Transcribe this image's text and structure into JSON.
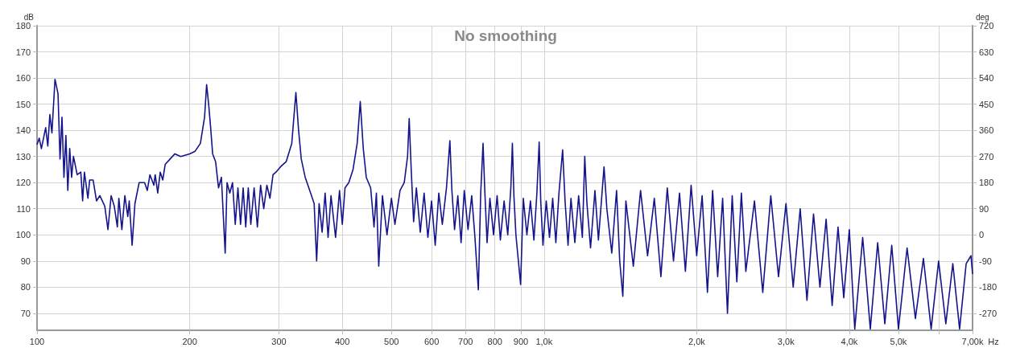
{
  "chart_data": {
    "type": "line",
    "title": "No smoothing",
    "xlabel": "Hz",
    "ylabel": "dB",
    "y2label": "deg",
    "log": "x",
    "grid": true,
    "xlim": [
      100,
      7000
    ],
    "xticks": [
      100,
      200,
      300,
      400,
      500,
      600,
      700,
      800,
      900,
      {
        "value": 1000,
        "label": "1,0k"
      },
      {
        "value": 2000,
        "label": "2,0k"
      },
      {
        "value": 3000,
        "label": "3,0k"
      },
      {
        "value": 4000,
        "label": "4,0k"
      },
      {
        "value": 5000,
        "label": "5,0k"
      },
      {
        "value": 6000,
        "label": null
      },
      {
        "value": 7000,
        "label": "7,00k"
      }
    ],
    "ylim": [
      63.5,
      180
    ],
    "yticks": [
      70,
      80,
      90,
      100,
      110,
      120,
      130,
      140,
      150,
      160,
      170,
      180
    ],
    "y2lim": [
      -328.5,
      720
    ],
    "y2ticks": [
      -270,
      -180,
      -90,
      0,
      90,
      180,
      270,
      360,
      450,
      540,
      630,
      720
    ],
    "series": [
      {
        "color": "#14148c",
        "x": [
          100,
          101,
          102,
          104,
          105,
          106,
          107,
          108.5,
          110,
          111,
          112,
          113,
          114,
          115,
          116,
          117,
          118,
          120,
          122,
          123,
          124,
          126,
          127,
          129,
          131,
          133,
          136,
          138,
          140,
          142,
          144,
          145,
          147,
          149,
          151,
          152,
          154,
          156,
          159,
          163,
          165,
          167,
          170,
          171,
          173,
          175,
          177,
          179,
          183,
          187,
          192,
          200,
          205,
          210,
          214,
          216,
          218,
          220,
          222,
          225,
          228,
          231,
          235,
          237,
          240,
          243,
          246,
          249,
          252,
          255,
          258,
          261,
          264,
          268,
          272,
          276,
          280,
          284,
          288,
          292,
          296,
          302,
          310,
          318,
          324,
          328,
          332,
          338,
          345,
          352,
          356,
          360,
          365,
          370,
          375,
          380,
          388,
          395,
          400,
          405,
          412,
          420,
          428,
          434,
          440,
          446,
          455,
          462,
          467,
          472,
          480,
          490,
          500,
          508,
          520,
          530,
          538,
          542,
          547,
          553,
          560,
          570,
          580,
          590,
          600,
          610,
          620,
          630,
          642,
          652,
          658,
          666,
          676,
          686,
          696,
          708,
          720,
          730,
          742,
          750,
          758,
          764,
          772,
          782,
          795,
          808,
          820,
          834,
          848,
          860,
          866,
          872,
          880,
          899,
          910,
          925,
          940,
          955,
          968,
          978,
          985,
          995,
          1010,
          1025,
          1040,
          1055,
          1070,
          1088,
          1100,
          1115,
          1130,
          1150,
          1170,
          1190,
          1203,
          1215,
          1235,
          1260,
          1280,
          1300,
          1313,
          1330,
          1360,
          1390,
          1410,
          1430,
          1450,
          1500,
          1550,
          1600,
          1650,
          1700,
          1750,
          1800,
          1850,
          1900,
          1950,
          2000,
          2050,
          2100,
          2150,
          2200,
          2250,
          2300,
          2350,
          2400,
          2450,
          2500,
          2600,
          2700,
          2800,
          2900,
          3000,
          3100,
          3200,
          3300,
          3400,
          3500,
          3600,
          3700,
          3800,
          3900,
          4000,
          4100,
          4250,
          4400,
          4550,
          4700,
          4850,
          5000,
          5200,
          5400,
          5600,
          5800,
          6000,
          6200,
          6400,
          6600,
          6800,
          6950,
          7000
        ],
        "values": [
          134.5,
          137,
          133,
          141,
          134,
          146,
          139,
          159.5,
          154,
          129,
          145,
          122,
          138,
          117,
          133,
          122,
          130,
          123,
          124,
          113,
          124,
          114,
          121,
          121,
          113,
          115,
          111,
          102,
          115,
          111,
          103,
          114,
          102,
          115,
          107,
          113,
          96,
          112,
          120,
          120,
          117,
          123,
          119,
          123,
          116,
          124,
          121,
          127,
          129,
          131,
          130,
          131,
          132,
          135,
          145,
          157.5,
          150,
          141,
          131,
          128,
          118,
          122,
          93,
          120,
          116,
          120,
          104,
          118,
          104,
          118,
          103,
          118,
          104,
          118,
          103,
          119,
          110,
          119,
          114,
          123,
          124,
          126,
          128,
          135,
          154.5,
          140,
          129,
          122,
          117,
          112,
          90,
          112,
          101,
          116,
          99,
          115,
          99,
          117,
          104,
          118,
          120,
          125,
          135,
          151,
          133,
          122,
          118,
          103,
          116,
          88,
          115,
          100,
          114,
          104,
          117,
          120,
          130,
          144.5,
          125,
          105,
          118,
          101,
          116,
          99,
          113,
          96,
          116,
          104,
          118,
          136,
          117,
          102,
          115,
          97,
          117,
          102,
          115,
          100,
          79,
          116,
          135,
          117,
          97,
          114,
          100,
          115,
          98,
          113,
          100,
          118,
          135,
          115,
          100,
          81,
          114,
          100,
          113,
          98,
          116,
          135.5,
          113,
          96,
          113,
          99,
          114,
          97,
          116,
          132.5,
          113,
          96,
          114,
          97,
          115,
          99,
          130,
          112,
          95,
          117,
          98,
          115,
          126,
          110,
          93,
          117,
          90,
          76.5,
          113,
          88,
          117,
          92,
          114,
          84,
          118,
          90,
          116,
          86,
          119,
          92,
          115,
          78,
          117,
          84,
          114,
          70,
          115,
          82,
          116,
          86,
          113,
          78,
          115,
          84,
          112,
          80,
          110,
          75,
          108,
          80,
          106,
          73,
          103,
          76,
          102,
          64,
          99,
          64,
          97,
          66,
          96,
          64,
          95,
          68,
          91,
          64,
          90,
          66,
          89,
          64,
          89,
          92,
          85
        ]
      }
    ]
  }
}
